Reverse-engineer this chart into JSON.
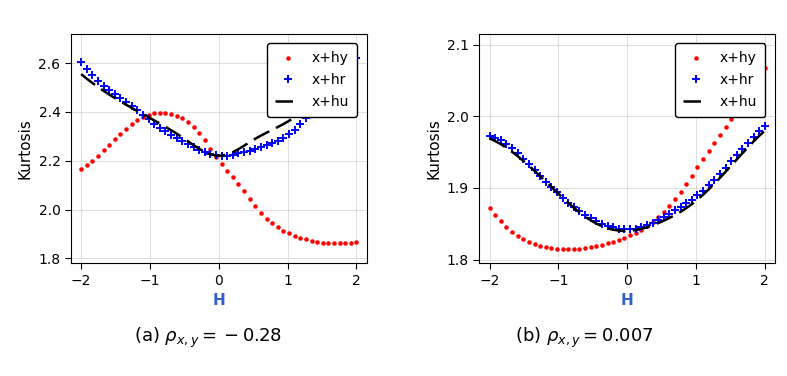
{
  "panel_a": {
    "xlim": [
      -2.15,
      2.15
    ],
    "ylim": [
      1.78,
      2.72
    ],
    "yticks": [
      1.8,
      2.0,
      2.2,
      2.4,
      2.6
    ],
    "xticks": [
      -2,
      -1,
      0,
      1,
      2
    ],
    "xlabel": "H",
    "ylabel": "Kurtosis",
    "subtitle": "(a) $\\rho_{x,y} = -0.28$",
    "xhy_pts_x": [
      -2.0,
      -1.5,
      -1.0,
      -0.7,
      -0.3,
      0.0,
      0.3,
      0.6,
      1.0,
      1.5,
      2.0
    ],
    "xhy_pts_y": [
      2.165,
      2.29,
      2.39,
      2.39,
      2.32,
      2.2,
      2.1,
      1.99,
      1.905,
      1.865,
      1.865
    ],
    "xhr_pts_x": [
      -2.0,
      -1.5,
      -1.2,
      -1.0,
      -0.8,
      -0.5,
      -0.2,
      0.0,
      0.2,
      0.5,
      0.8,
      1.0,
      1.2,
      1.5,
      2.0
    ],
    "xhr_pts_y": [
      2.605,
      2.47,
      2.41,
      2.365,
      2.325,
      2.275,
      2.235,
      2.22,
      2.225,
      2.245,
      2.275,
      2.305,
      2.355,
      2.46,
      2.62
    ],
    "xhu_pts_x": [
      -2.0,
      -1.5,
      -1.0,
      -0.5,
      0.0,
      0.5,
      1.0,
      1.5,
      2.0
    ],
    "xhu_pts_y": [
      2.555,
      2.455,
      2.375,
      2.29,
      2.22,
      2.285,
      2.36,
      2.455,
      2.535
    ]
  },
  "panel_b": {
    "xlim": [
      -2.15,
      2.15
    ],
    "ylim": [
      1.795,
      2.115
    ],
    "yticks": [
      1.8,
      1.9,
      2.0,
      2.1
    ],
    "xticks": [
      -2,
      -1,
      0,
      1,
      2
    ],
    "xlabel": "H",
    "ylabel": "Kurtosis",
    "subtitle": "(b) $\\rho_{x,y} = 0.007$",
    "xhy_pts_x": [
      -2.0,
      -1.5,
      -1.0,
      -0.5,
      0.0,
      0.3,
      0.5,
      0.8,
      1.0,
      1.3,
      1.5,
      1.7,
      2.0
    ],
    "xhy_pts_y": [
      1.872,
      1.828,
      1.815,
      1.818,
      1.832,
      1.848,
      1.864,
      1.898,
      1.926,
      1.968,
      1.995,
      2.028,
      2.068
    ],
    "xhr_pts_x": [
      -2.0,
      -1.5,
      -1.2,
      -1.0,
      -0.8,
      -0.5,
      -0.2,
      0.0,
      0.2,
      0.5,
      0.8,
      1.0,
      1.2,
      1.5,
      2.0
    ],
    "xhr_pts_y": [
      1.972,
      1.94,
      1.91,
      1.892,
      1.875,
      1.856,
      1.845,
      1.842,
      1.845,
      1.858,
      1.875,
      1.888,
      1.905,
      1.936,
      1.986
    ],
    "xhu_pts_x": [
      -2.0,
      -1.5,
      -1.0,
      -0.5,
      0.0,
      0.5,
      1.0,
      1.5,
      2.0
    ],
    "xhu_pts_y": [
      1.969,
      1.937,
      1.892,
      1.853,
      1.84,
      1.853,
      1.882,
      1.93,
      1.98
    ]
  },
  "legend_labels": [
    "x+hy",
    "x+hr",
    "x+hu"
  ],
  "xhy_color": "#ff0000",
  "xhr_color": "#0000ff",
  "xhu_color": "#000000",
  "xlabel_color": "#3060c8",
  "ylabel_color": "#000000",
  "n_points": 50,
  "subtitle_fontsize": 13,
  "axis_label_fontsize": 11,
  "tick_fontsize": 10,
  "legend_fontsize": 10
}
